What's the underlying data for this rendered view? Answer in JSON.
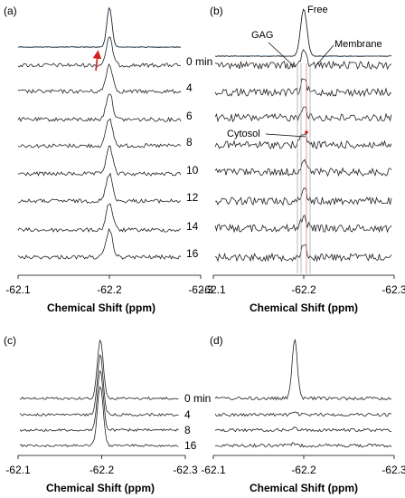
{
  "colors": {
    "trace": "#222222",
    "fit_line": "#5b9bd5",
    "arrow": "#d62020",
    "guide_line": "#9a9a9a",
    "guide_line_red": "#e07070"
  },
  "chart_data": [
    {
      "panel": "(a)",
      "type": "line",
      "description_type": "stacked NMR spectra",
      "xlabel": "Chemical Shift (ppm)",
      "xlim": [
        -62.1,
        -62.3
      ],
      "xticks": [
        "-62.1",
        "-62.2",
        "-62.3"
      ],
      "series": [
        {
          "name": "0 min",
          "label": "0 min",
          "peak_ppm": -62.2,
          "peak_height": 1.0
        },
        {
          "name": "4",
          "label": "4",
          "peak_ppm": -62.2,
          "peak_height": 1.0
        },
        {
          "name": "6",
          "label": "6",
          "peak_ppm": -62.2,
          "peak_height": 1.0
        },
        {
          "name": "8",
          "label": "8",
          "peak_ppm": -62.2,
          "peak_height": 1.0
        },
        {
          "name": "10",
          "label": "10",
          "peak_ppm": -62.2,
          "peak_height": 1.0
        },
        {
          "name": "12",
          "label": "12",
          "peak_ppm": -62.2,
          "peak_height": 1.0
        },
        {
          "name": "14",
          "label": "14",
          "peak_ppm": -62.2,
          "peak_height": 1.0
        },
        {
          "name": "16",
          "label": "16",
          "peak_ppm": -62.2,
          "peak_height": 1.0
        }
      ],
      "top_trace": {
        "peak_ppm": -62.2,
        "peak_height": 1.0
      }
    },
    {
      "panel": "(b)",
      "type": "line",
      "description_type": "stacked NMR spectra",
      "xlabel": "Chemical Shift (ppm)",
      "xlim": [
        -62.1,
        -62.3
      ],
      "xticks": [
        "-62.1",
        "-62.2",
        "-62.3"
      ],
      "annotations": [
        "Free",
        "GAG",
        "Membrane",
        "Cytosol"
      ],
      "series_count": 8,
      "peak_ppm": -62.21,
      "top_trace": {
        "peak_ppm": -62.2,
        "peak_height": 1.0
      }
    },
    {
      "panel": "(c)",
      "type": "line",
      "description_type": "stacked NMR spectra",
      "xlabel": "Chemical Shift (ppm)",
      "xlim": [
        -62.1,
        -62.3
      ],
      "xticks": [
        "-62.1",
        "-62.2",
        "-62.3"
      ],
      "series": [
        {
          "label": "0 min",
          "peak_ppm": -62.19,
          "peak_height": 1.0
        },
        {
          "label": "4",
          "peak_ppm": -62.19,
          "peak_height": 1.0
        },
        {
          "label": "8",
          "peak_ppm": -62.19,
          "peak_height": 1.0
        },
        {
          "label": "16",
          "peak_ppm": -62.19,
          "peak_height": 1.0
        }
      ]
    },
    {
      "panel": "(d)",
      "type": "line",
      "description_type": "stacked NMR spectra",
      "xlabel": "Chemical Shift (ppm)",
      "xlim": [
        -62.1,
        -62.3
      ],
      "xticks": [
        "-62.1",
        "-62.2",
        "-62.3"
      ],
      "series_count": 4,
      "top_trace": {
        "peak_ppm": -62.19,
        "peak_height": 1.0
      }
    }
  ]
}
